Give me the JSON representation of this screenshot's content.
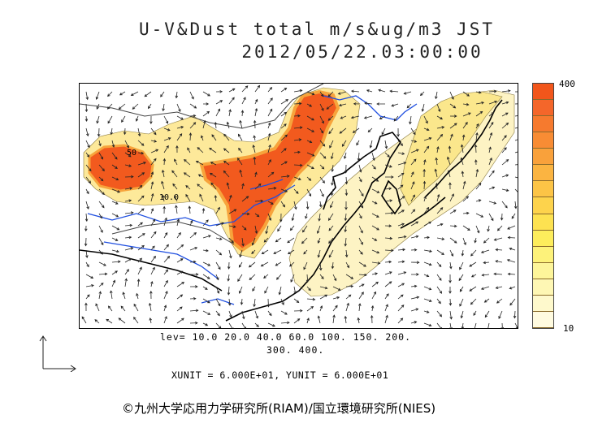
{
  "title": {
    "line1": "U-V&Dust total m/s&ug/m3 JST",
    "line2": "2012/05/22.03:00:00"
  },
  "map": {
    "contour_labels": [
      "50",
      "10.0"
    ],
    "colors": {
      "heavy": "#f25a1e",
      "medium": "#f7a43c",
      "light": "#fbe78c",
      "faint": "#fdf3c4",
      "coast": "#000000",
      "rivers": "#1f4fe0",
      "border": "#555555"
    }
  },
  "colorbar": {
    "max_label": "400",
    "min_label": "10",
    "colors": [
      "#f2561b",
      "#f4662a",
      "#f67a2e",
      "#f88c34",
      "#f9a13b",
      "#fbb441",
      "#fcc446",
      "#fdd34c",
      "#fde251",
      "#fded5c",
      "#fdf27a",
      "#fdf59a",
      "#fef7b4",
      "#fef9cc",
      "#fffbe0"
    ]
  },
  "levels": {
    "line1": "lev= 10.0 20.0 40.0 60.0 100. 150. 200.",
    "line2": "300. 400."
  },
  "units": "XUNIT = 6.000E+01, YUNIT = 6.000E+01",
  "credit": "©九州大学応用力学研究所(RIAM)/国立環境研究所(NIES)"
}
